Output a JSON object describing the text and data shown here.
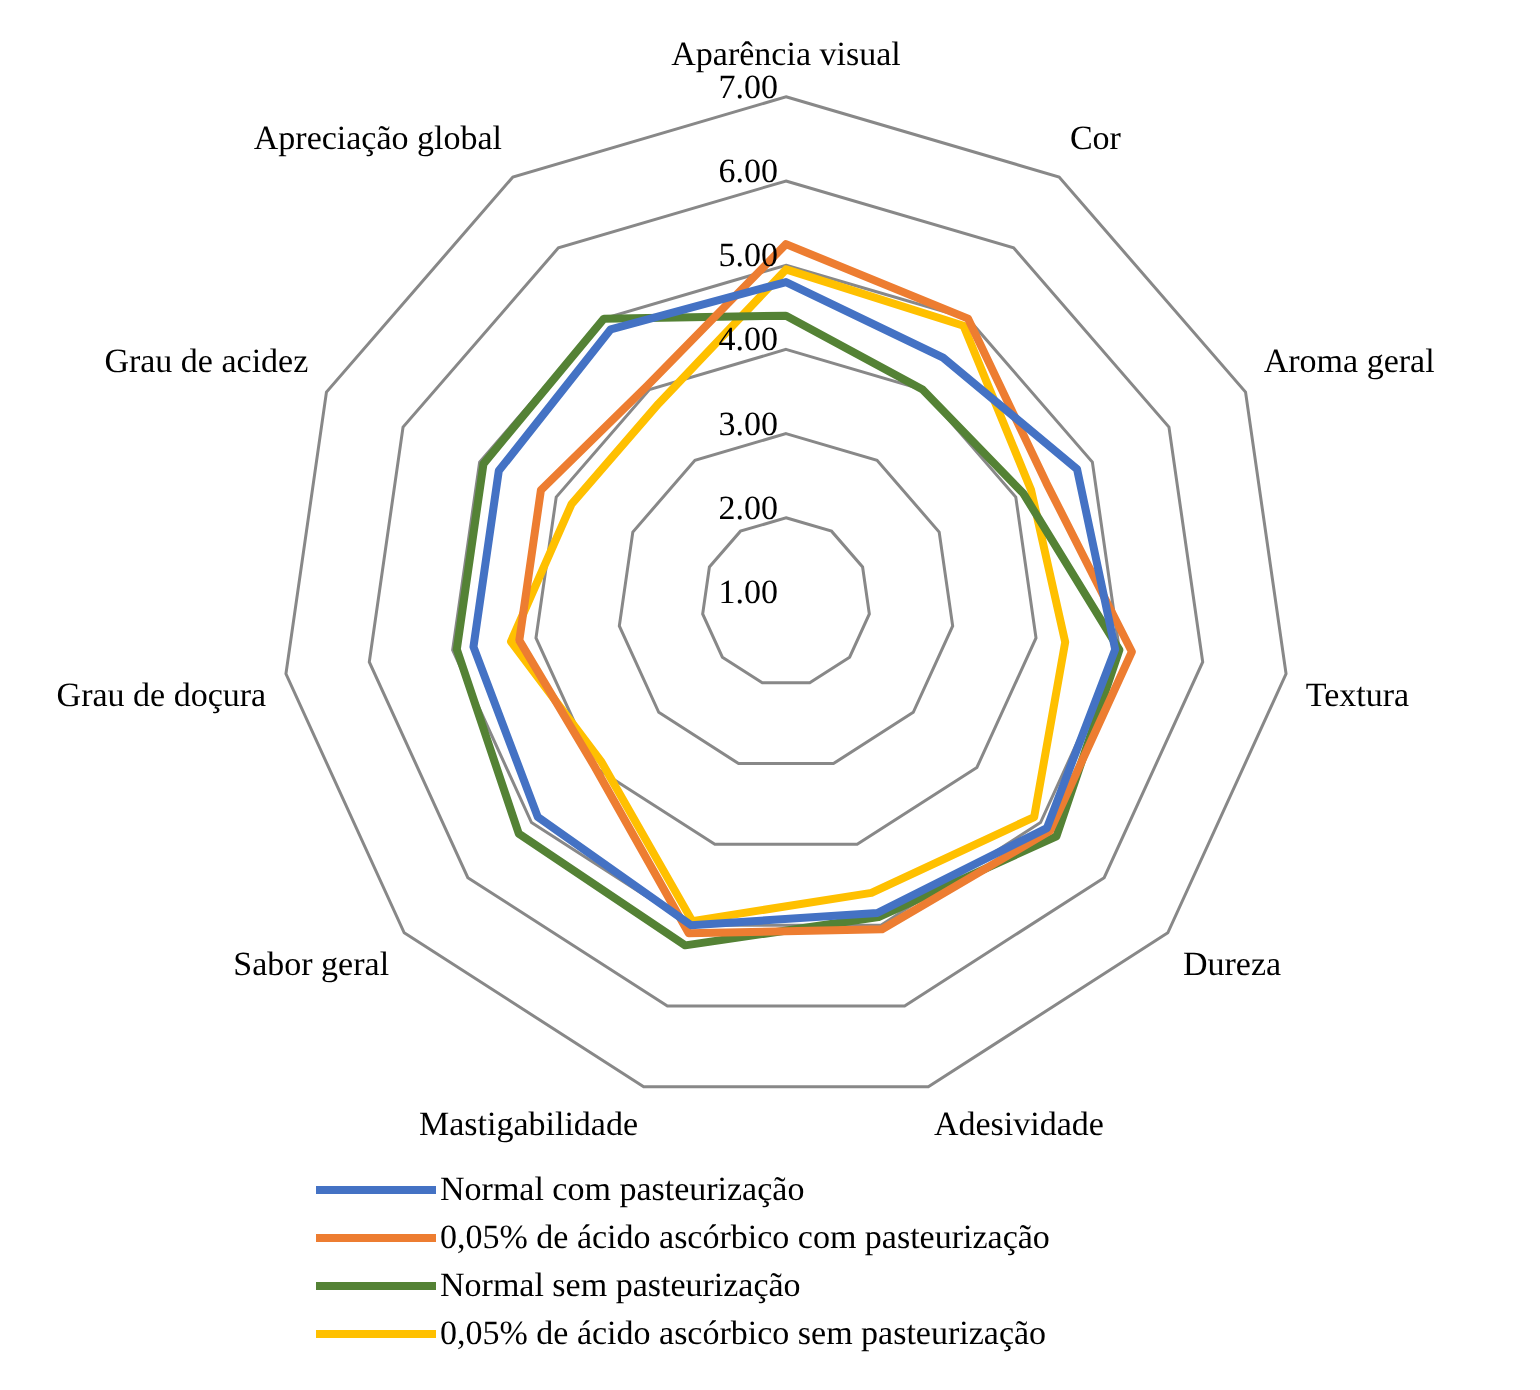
{
  "chart_data": {
    "type": "radar",
    "categories": [
      "Aparência visual",
      "Cor",
      "Aroma geral",
      "Textura",
      "Dureza",
      "Adesividade",
      "Mastigabilidade",
      "Sabor geral",
      "Grau de doçura",
      "Grau de acidez",
      "Apreciação global"
    ],
    "series": [
      {
        "name": "Normal com pasteurização",
        "color": "#4472c4",
        "values": [
          4.8,
          4.45,
          4.8,
          4.95,
          5.1,
          4.85,
          5.0,
          4.9,
          4.75,
          4.75,
          4.85
        ]
      },
      {
        "name": "0,05% de ácido ascórbico com pasteurização",
        "color": "#ed7d31",
        "values": [
          5.25,
          5.0,
          4.4,
          5.15,
          5.15,
          5.05,
          5.1,
          4.0,
          4.2,
          4.2,
          4.05
        ]
      },
      {
        "name": "Normal sem pasteurização",
        "color": "#548235",
        "values": [
          4.4,
          4.0,
          4.1,
          5.0,
          5.25,
          4.9,
          5.25,
          5.2,
          4.95,
          4.95,
          5.0
        ]
      },
      {
        "name": "0,05% de ácido ascórbico sem pasteurização",
        "color": "#ffc000",
        "values": [
          4.95,
          4.9,
          4.2,
          4.35,
          4.9,
          4.6,
          4.95,
          3.9,
          4.3,
          3.8,
          3.8
        ]
      }
    ],
    "ylim": [
      1,
      7
    ],
    "yticks": [
      {
        "value": 1,
        "label": "1.00"
      },
      {
        "value": 2,
        "label": "2.00"
      },
      {
        "value": 3,
        "label": "3.00"
      },
      {
        "value": 4,
        "label": "4.00"
      },
      {
        "value": 5,
        "label": "5.00"
      },
      {
        "value": 6,
        "label": "6.00"
      },
      {
        "value": 7,
        "label": "7.00"
      }
    ],
    "grid": true,
    "legend": "bottom",
    "marker": "none",
    "line_style": "solid"
  }
}
